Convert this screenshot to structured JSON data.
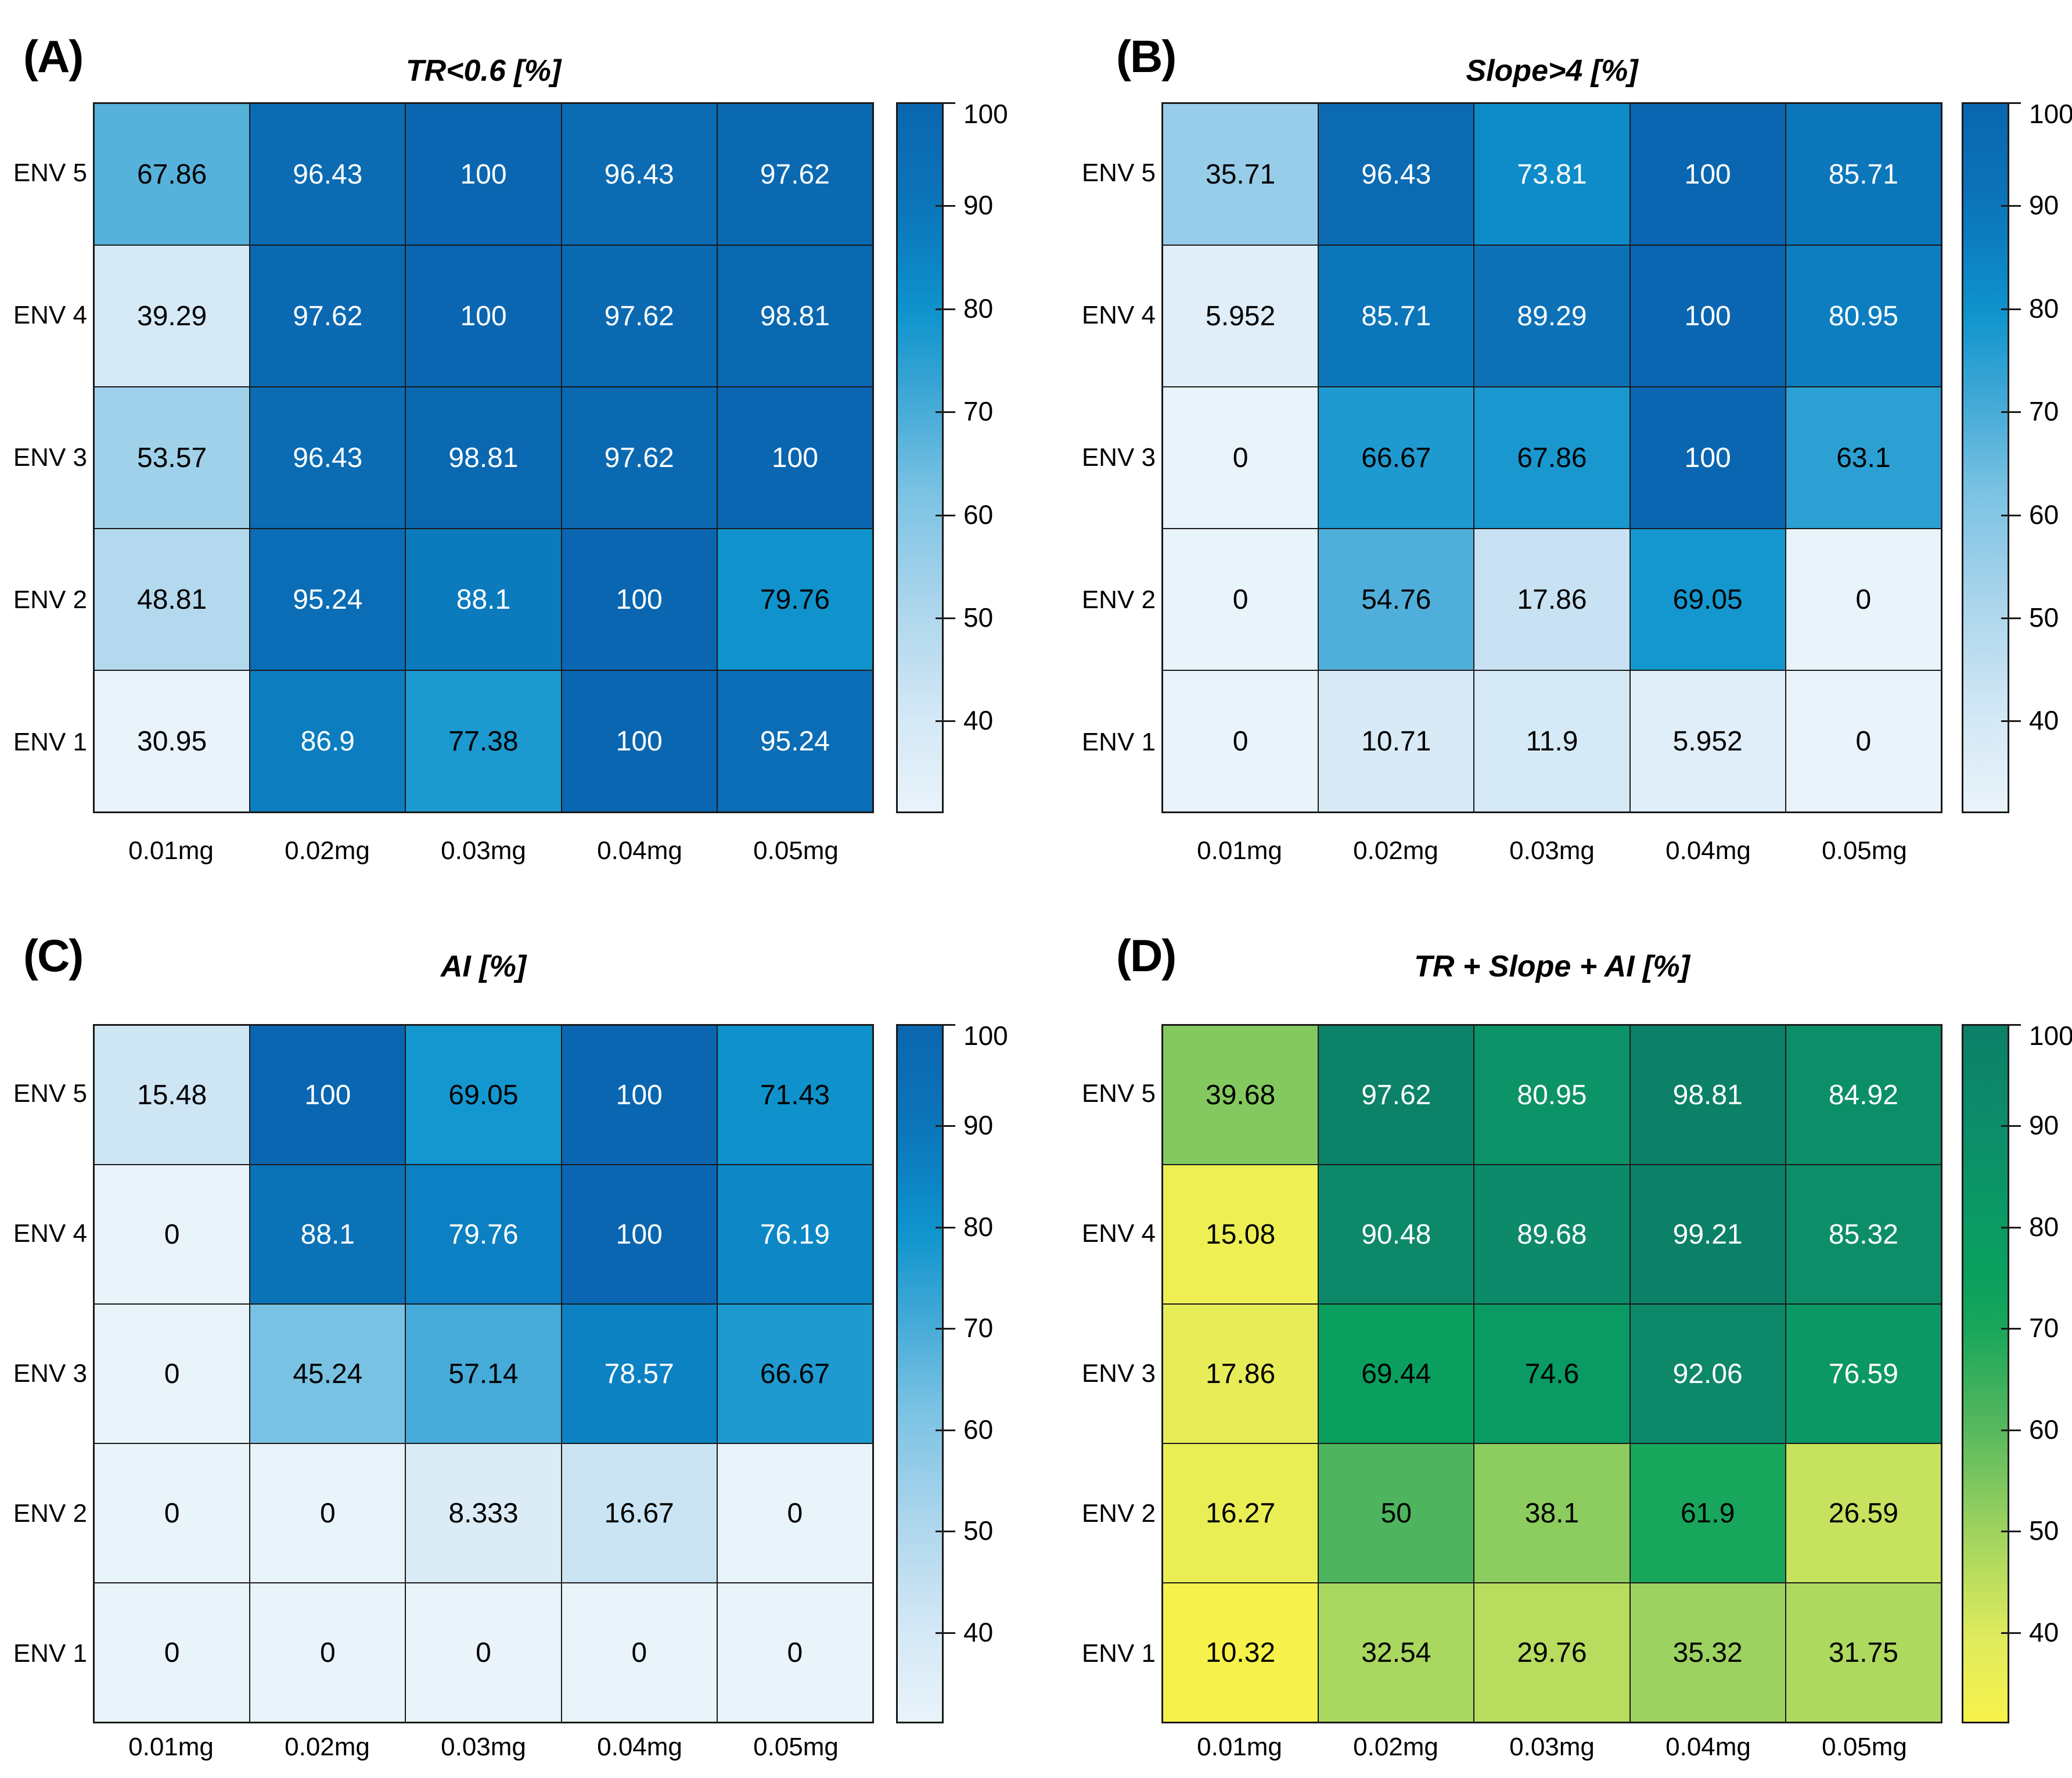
{
  "figure": {
    "background": "#ffffff",
    "gridline_color": "#1a1a1a",
    "text_rule": {
      "white_text_norm_threshold": 0.72,
      "dark_text_color": "#000000",
      "light_text_color": "#ffffff"
    },
    "colorbar": {
      "ticks": [
        100,
        90,
        80,
        70,
        60,
        50,
        40
      ],
      "display_range": [
        31,
        100
      ]
    },
    "colormaps": {
      "blue": [
        [
          0,
          "#e9f3fa"
        ],
        [
          0.14,
          "#d2e7f5"
        ],
        [
          0.3,
          "#a9d4ec"
        ],
        [
          0.45,
          "#7ac2e3"
        ],
        [
          0.6,
          "#3aa5d5"
        ],
        [
          0.7,
          "#1095cd"
        ],
        [
          0.78,
          "#0c83c4"
        ],
        [
          0.88,
          "#0c72b8"
        ],
        [
          1,
          "#0a66b0"
        ]
      ],
      "green_yellow": [
        [
          0,
          "#f7f24b"
        ],
        [
          0.12,
          "#e0eb5d"
        ],
        [
          0.27,
          "#a0d45f"
        ],
        [
          0.42,
          "#58b85e"
        ],
        [
          0.56,
          "#1ba75b"
        ],
        [
          0.64,
          "#0aa05e"
        ],
        [
          0.71,
          "#0a9b63"
        ],
        [
          0.86,
          "#0d8c6a"
        ],
        [
          1,
          "#0c8068"
        ]
      ]
    }
  },
  "chart_data": [
    {
      "type": "heatmap",
      "panel_label": "(A)",
      "title": "TR<0.6 [%]",
      "rows": [
        "ENV 5",
        "ENV 4",
        "ENV 3",
        "ENV 2",
        "ENV 1"
      ],
      "columns": [
        "0.01mg",
        "0.02mg",
        "0.03mg",
        "0.04mg",
        "0.05mg"
      ],
      "values": [
        [
          67.86,
          96.43,
          100,
          96.43,
          97.62
        ],
        [
          39.29,
          97.62,
          100,
          97.62,
          98.81
        ],
        [
          53.57,
          96.43,
          98.81,
          97.62,
          100
        ],
        [
          48.81,
          95.24,
          88.1,
          100,
          79.76
        ],
        [
          30.95,
          86.9,
          77.38,
          100,
          95.24
        ]
      ],
      "colormap": "blue",
      "color_limits": [
        30.95,
        100
      ],
      "legend_position": "right"
    },
    {
      "type": "heatmap",
      "panel_label": "(B)",
      "title": "Slope>4 [%]",
      "rows": [
        "ENV 5",
        "ENV 4",
        "ENV 3",
        "ENV 2",
        "ENV 1"
      ],
      "columns": [
        "0.01mg",
        "0.02mg",
        "0.03mg",
        "0.04mg",
        "0.05mg"
      ],
      "values": [
        [
          35.71,
          96.43,
          73.81,
          100,
          85.71
        ],
        [
          5.952,
          85.71,
          89.29,
          100,
          80.95
        ],
        [
          0,
          66.67,
          67.86,
          100,
          63.1
        ],
        [
          0,
          54.76,
          17.86,
          69.05,
          0
        ],
        [
          0,
          10.71,
          11.9,
          5.952,
          0
        ]
      ],
      "colormap": "blue",
      "color_limits": [
        0,
        100
      ],
      "legend_position": "right"
    },
    {
      "type": "heatmap",
      "panel_label": "(C)",
      "title": "AI [%]",
      "rows": [
        "ENV 5",
        "ENV 4",
        "ENV 3",
        "ENV 2",
        "ENV 1"
      ],
      "columns": [
        "0.01mg",
        "0.02mg",
        "0.03mg",
        "0.04mg",
        "0.05mg"
      ],
      "values": [
        [
          15.48,
          100,
          69.05,
          100,
          71.43
        ],
        [
          0,
          88.1,
          79.76,
          100,
          76.19
        ],
        [
          0,
          45.24,
          57.14,
          78.57,
          66.67
        ],
        [
          0,
          0,
          8.333,
          16.67,
          0
        ],
        [
          0,
          0,
          0,
          0,
          0
        ]
      ],
      "colormap": "blue",
      "color_limits": [
        0,
        100
      ],
      "legend_position": "right"
    },
    {
      "type": "heatmap",
      "panel_label": "(D)",
      "title": "TR + Slope + AI [%]",
      "rows": [
        "ENV 5",
        "ENV 4",
        "ENV 3",
        "ENV 2",
        "ENV 1"
      ],
      "columns": [
        "0.01mg",
        "0.02mg",
        "0.03mg",
        "0.04mg",
        "0.05mg"
      ],
      "values": [
        [
          39.68,
          97.62,
          80.95,
          98.81,
          84.92
        ],
        [
          15.08,
          90.48,
          89.68,
          99.21,
          85.32
        ],
        [
          17.86,
          69.44,
          74.6,
          92.06,
          76.59
        ],
        [
          16.27,
          50,
          38.1,
          61.9,
          26.59
        ],
        [
          10.32,
          32.54,
          29.76,
          35.32,
          31.75
        ]
      ],
      "colormap": "green_yellow",
      "color_limits": [
        10.32,
        100
      ],
      "legend_position": "right"
    }
  ]
}
